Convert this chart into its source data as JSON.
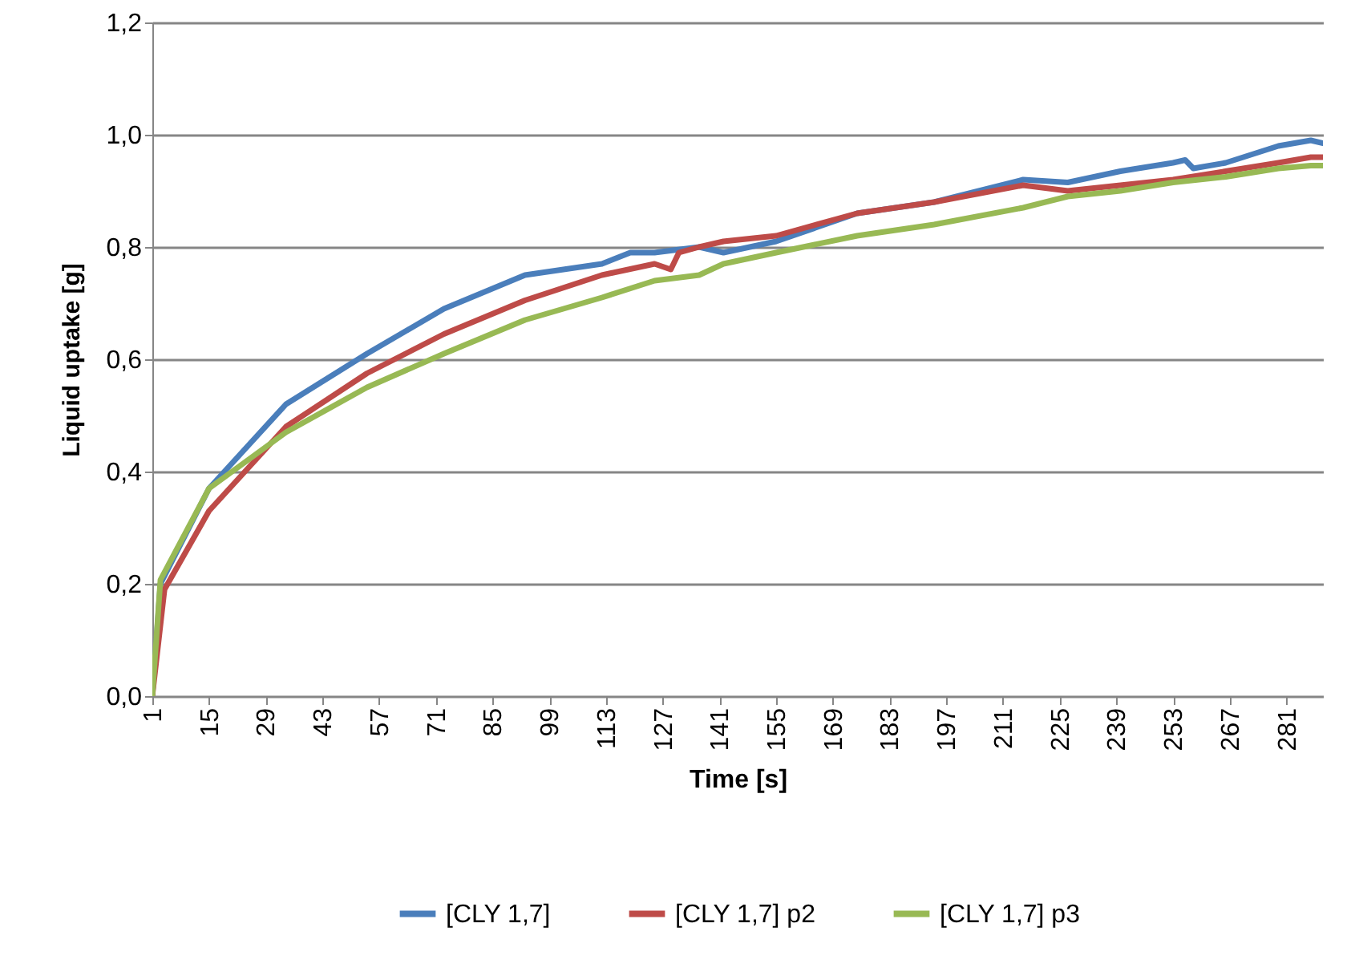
{
  "chart_data": {
    "type": "line",
    "xlabel": "Time [s]",
    "ylabel": "Liquid uptake [g]",
    "xlim": [
      1,
      290
    ],
    "xticks": [
      1,
      15,
      29,
      43,
      57,
      71,
      85,
      99,
      113,
      127,
      141,
      155,
      169,
      183,
      197,
      211,
      225,
      239,
      253,
      267,
      281
    ],
    "ylim": [
      0,
      1.2
    ],
    "yticks": [
      {
        "value": 0,
        "label": "0,0"
      },
      {
        "value": 0.2,
        "label": "0,2"
      },
      {
        "value": 0.4,
        "label": "0,4"
      },
      {
        "value": 0.6,
        "label": "0,6"
      },
      {
        "value": 0.8,
        "label": "0,8"
      },
      {
        "value": 1.0,
        "label": "1,0"
      },
      {
        "value": 1.2,
        "label": "1,2"
      }
    ],
    "grid": "y",
    "legend": "bottom",
    "marker": "none",
    "line_style": "solid",
    "series": [
      {
        "name": "[CLY 1,7]",
        "color": "#4a7ebb",
        "x": [
          1,
          3,
          15,
          34,
          54,
          73,
          93,
          112,
          119,
          125,
          136,
          142,
          155,
          175,
          194,
          216,
          227,
          240,
          253,
          256,
          258,
          266,
          279,
          287,
          290
        ],
        "values": [
          0,
          0.2,
          0.37,
          0.52,
          0.61,
          0.69,
          0.75,
          0.77,
          0.79,
          0.79,
          0.8,
          0.79,
          0.81,
          0.86,
          0.88,
          0.92,
          0.915,
          0.935,
          0.95,
          0.955,
          0.94,
          0.95,
          0.98,
          0.99,
          0.985
        ]
      },
      {
        "name": "[CLY 1,7] p2",
        "color": "#be4b48",
        "x": [
          1,
          4,
          15,
          34,
          54,
          73,
          93,
          112,
          125,
          129,
          131,
          136,
          142,
          155,
          175,
          194,
          216,
          227,
          240,
          253,
          266,
          279,
          287,
          290
        ],
        "values": [
          0,
          0.19,
          0.33,
          0.48,
          0.575,
          0.645,
          0.705,
          0.75,
          0.77,
          0.76,
          0.79,
          0.8,
          0.81,
          0.82,
          0.86,
          0.88,
          0.91,
          0.9,
          0.91,
          0.92,
          0.935,
          0.95,
          0.96,
          0.96
        ]
      },
      {
        "name": "[CLY 1,7] p3",
        "color": "#98b954",
        "x": [
          1,
          3,
          15,
          34,
          54,
          73,
          93,
          112,
          125,
          136,
          142,
          155,
          175,
          194,
          216,
          227,
          240,
          253,
          266,
          279,
          287,
          290
        ],
        "values": [
          0,
          0.207,
          0.37,
          0.47,
          0.55,
          0.61,
          0.67,
          0.71,
          0.74,
          0.75,
          0.77,
          0.79,
          0.82,
          0.84,
          0.87,
          0.89,
          0.9,
          0.915,
          0.925,
          0.94,
          0.945,
          0.945
        ]
      }
    ]
  }
}
